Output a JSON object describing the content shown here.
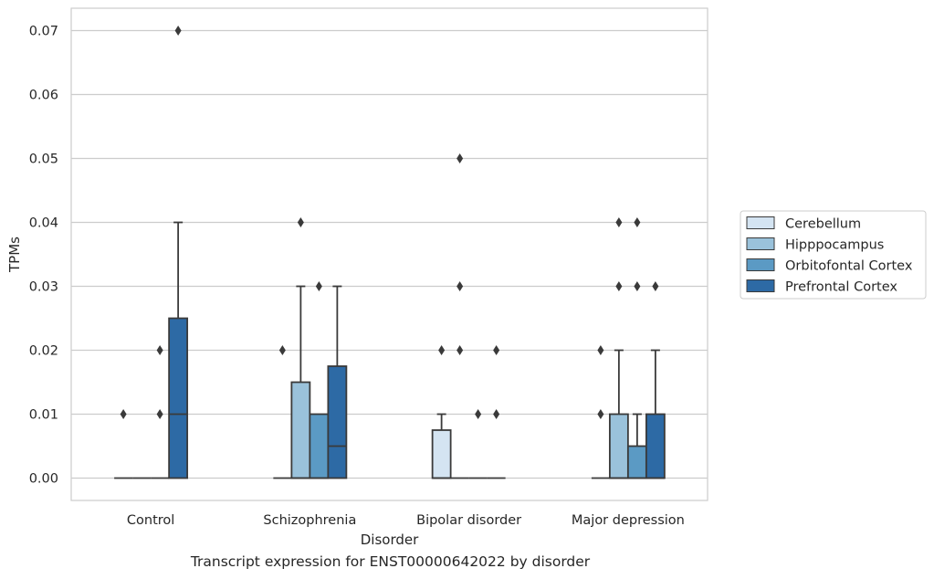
{
  "caption": "Transcript expression for ENST00000642022 by disorder",
  "chart_data": {
    "type": "box",
    "xlabel": "Disorder",
    "ylabel": "TPMs",
    "ylim": [
      -0.0035,
      0.0735
    ],
    "yticks": [
      "0.00",
      "0.01",
      "0.02",
      "0.03",
      "0.04",
      "0.05",
      "0.06",
      "0.07"
    ],
    "grid": "horizontal",
    "legend_position": "right",
    "categories": [
      "Control",
      "Schizophrenia",
      "Bipolar disorder",
      "Major depression"
    ],
    "series": [
      {
        "name": "Cerebellum",
        "color": "#d4e4f2",
        "boxes": [
          {
            "q1": 0,
            "median": 0,
            "q3": 0,
            "whisker_low": 0,
            "whisker_high": 0,
            "outliers": [
              0.01
            ]
          },
          {
            "q1": 0,
            "median": 0,
            "q3": 0,
            "whisker_low": 0,
            "whisker_high": 0,
            "outliers": [
              0.02
            ]
          },
          {
            "q1": 0,
            "median": 0,
            "q3": 0.0075,
            "whisker_low": 0,
            "whisker_high": 0.01,
            "outliers": [
              0.02
            ]
          },
          {
            "q1": 0,
            "median": 0,
            "q3": 0,
            "whisker_low": 0,
            "whisker_high": 0,
            "outliers": [
              0.01,
              0.02
            ]
          }
        ]
      },
      {
        "name": "Hipppocampus",
        "color": "#9ac2db",
        "boxes": [
          {
            "q1": 0,
            "median": 0,
            "q3": 0,
            "whisker_low": 0,
            "whisker_high": 0,
            "outliers": []
          },
          {
            "q1": 0,
            "median": 0,
            "q3": 0.015,
            "whisker_low": 0,
            "whisker_high": 0.03,
            "outliers": [
              0.04
            ]
          },
          {
            "q1": 0,
            "median": 0,
            "q3": 0,
            "whisker_low": 0,
            "whisker_high": 0,
            "outliers": [
              0.02,
              0.03,
              0.05
            ]
          },
          {
            "q1": 0,
            "median": 0,
            "q3": 0.01,
            "whisker_low": 0,
            "whisker_high": 0.02,
            "outliers": [
              0.03,
              0.04
            ]
          }
        ]
      },
      {
        "name": "Orbitofontal Cortex",
        "color": "#5b9ac4",
        "boxes": [
          {
            "q1": 0,
            "median": 0,
            "q3": 0,
            "whisker_low": 0,
            "whisker_high": 0,
            "outliers": [
              0.01,
              0.02
            ]
          },
          {
            "q1": 0,
            "median": 0,
            "q3": 0.01,
            "whisker_low": 0,
            "whisker_high": 0.01,
            "outliers": [
              0.03
            ]
          },
          {
            "q1": 0,
            "median": 0,
            "q3": 0,
            "whisker_low": 0,
            "whisker_high": 0,
            "outliers": [
              0.01
            ]
          },
          {
            "q1": 0,
            "median": 0,
            "q3": 0.005,
            "whisker_low": 0,
            "whisker_high": 0.01,
            "outliers": [
              0.03,
              0.04
            ]
          }
        ]
      },
      {
        "name": "Prefrontal Cortex",
        "color": "#2d6aa5",
        "boxes": [
          {
            "q1": 0,
            "median": 0.01,
            "q3": 0.025,
            "whisker_low": 0,
            "whisker_high": 0.04,
            "outliers": [
              0.07
            ]
          },
          {
            "q1": 0,
            "median": 0.005,
            "q3": 0.0175,
            "whisker_low": 0,
            "whisker_high": 0.03,
            "outliers": []
          },
          {
            "q1": 0,
            "median": 0,
            "q3": 0,
            "whisker_low": 0,
            "whisker_high": 0,
            "outliers": [
              0.01,
              0.02
            ]
          },
          {
            "q1": 0,
            "median": 0,
            "q3": 0.01,
            "whisker_low": 0,
            "whisker_high": 0.02,
            "outliers": [
              0.03
            ]
          }
        ]
      }
    ]
  }
}
